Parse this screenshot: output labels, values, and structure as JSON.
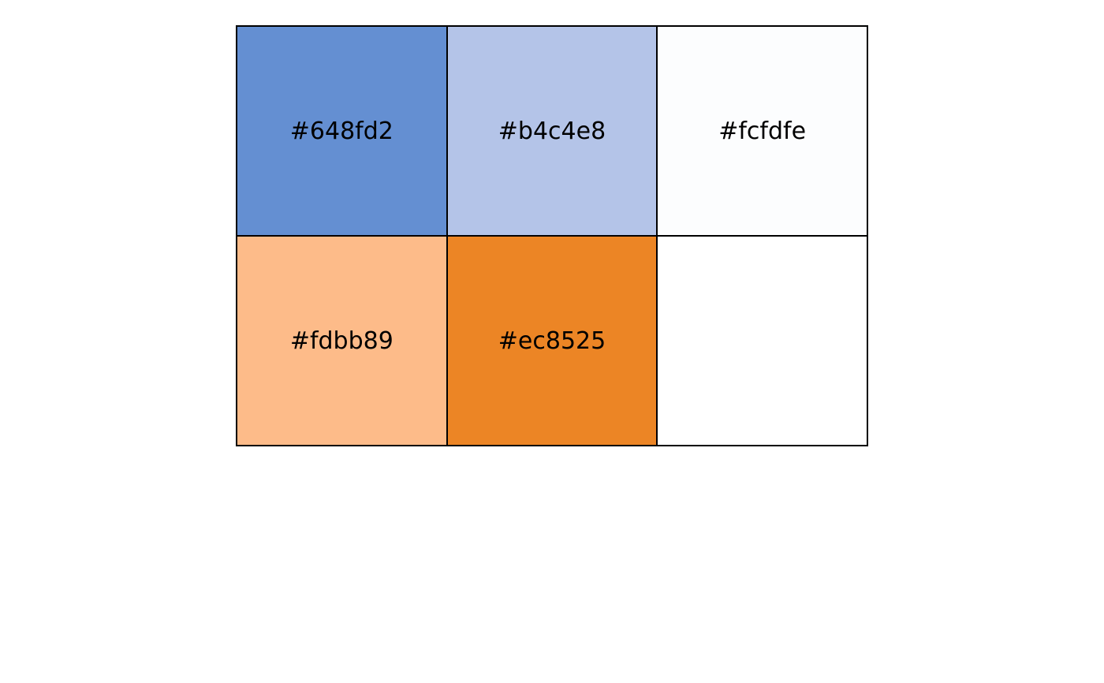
{
  "swatches": [
    {
      "label": "#648fd2",
      "color": "#648fd2"
    },
    {
      "label": "#b4c4e8",
      "color": "#b4c4e8"
    },
    {
      "label": "#fcfdfe",
      "color": "#fcfdfe"
    },
    {
      "label": "#fdbb89",
      "color": "#fdbb89"
    },
    {
      "label": "#ec8525",
      "color": "#ec8525"
    },
    {
      "label": "",
      "color": "#ffffff"
    }
  ]
}
